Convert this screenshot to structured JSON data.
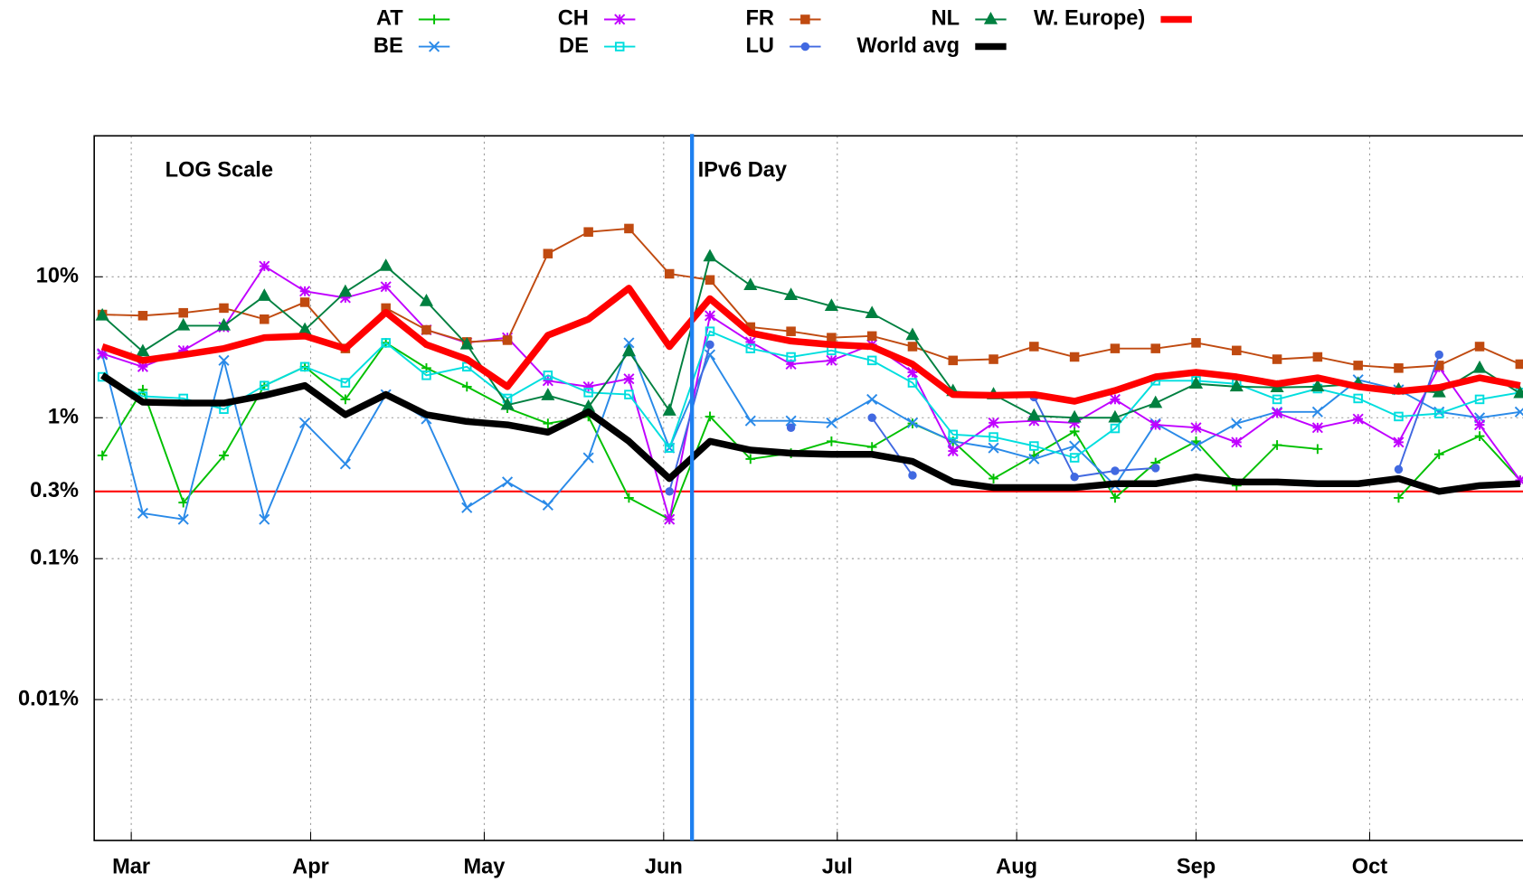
{
  "chart_data": {
    "type": "line",
    "x": [
      55,
      62,
      69,
      76,
      83,
      90,
      97,
      104,
      111,
      118,
      125,
      132,
      139,
      146,
      153,
      160,
      167,
      174,
      181,
      188,
      195,
      202,
      209,
      216,
      223,
      230,
      237,
      244,
      251,
      258,
      265,
      272,
      279,
      286,
      293,
      300
    ],
    "xlim": [
      53.6,
      300.5
    ],
    "xticks": [
      {
        "value": 60,
        "label": "Mar"
      },
      {
        "value": 91,
        "label": "Apr"
      },
      {
        "value": 121,
        "label": "May"
      },
      {
        "value": 152,
        "label": "Jun"
      },
      {
        "value": 182,
        "label": "Jul"
      },
      {
        "value": 213,
        "label": "Aug"
      },
      {
        "value": 244,
        "label": "Sep"
      },
      {
        "value": 274,
        "label": "Oct"
      }
    ],
    "ylim": [
      0.001,
      100
    ],
    "log_y": true,
    "grid": true,
    "yticks": [
      {
        "value": 10,
        "label": "10%"
      },
      {
        "value": 1,
        "label": "1%"
      },
      {
        "value": 0.3,
        "label": "0.3%"
      },
      {
        "value": 0.1,
        "label": "0.1%"
      },
      {
        "value": 0.01,
        "label": "0.01%"
      }
    ],
    "hlines": [
      {
        "y": 0.3,
        "color": "#ff0000"
      }
    ],
    "annotations": [
      {
        "text": "LOG Scale"
      },
      {
        "text": "IPv6 Day",
        "x": 156.9,
        "color": "#1e80f0"
      }
    ],
    "legend": "top",
    "series": [
      {
        "name": "AT",
        "color": "#00c000",
        "marker": "plus",
        "values": [
          0.54,
          1.58,
          0.25,
          0.54,
          1.69,
          2.3,
          1.35,
          3.4,
          2.25,
          1.66,
          1.17,
          0.91,
          1.02,
          0.27,
          0.19,
          1.02,
          0.51,
          0.56,
          0.68,
          0.62,
          0.91,
          0.68,
          0.37,
          0.54,
          0.8,
          0.27,
          0.48,
          0.68,
          0.33,
          0.64,
          0.6,
          null,
          0.27,
          0.55,
          0.74,
          0.36
        ]
      },
      {
        "name": "BE",
        "color": "#2a8ae8",
        "marker": "cross",
        "values": [
          2.8,
          0.21,
          0.19,
          2.55,
          0.19,
          0.92,
          0.47,
          1.46,
          0.98,
          0.23,
          0.35,
          0.24,
          0.52,
          3.4,
          0.61,
          2.8,
          0.95,
          0.95,
          0.92,
          1.35,
          0.92,
          0.68,
          0.61,
          0.51,
          0.63,
          0.33,
          0.91,
          0.63,
          0.91,
          1.1,
          1.1,
          1.86,
          1.58,
          1.1,
          1.0,
          1.1
        ]
      },
      {
        "name": "CH",
        "color": "#c000ff",
        "marker": "star",
        "values": [
          2.85,
          2.3,
          3.0,
          4.4,
          11.9,
          7.9,
          7.1,
          8.5,
          4.2,
          3.4,
          3.7,
          1.83,
          1.66,
          1.89,
          0.19,
          5.3,
          3.45,
          2.4,
          2.55,
          3.3,
          2.1,
          0.58,
          0.92,
          0.95,
          0.92,
          1.35,
          0.89,
          0.85,
          0.67,
          1.08,
          0.85,
          0.98,
          0.67,
          2.28,
          0.89,
          0.36
        ]
      },
      {
        "name": "DE",
        "color": "#00dede",
        "marker": "square-open",
        "values": [
          1.95,
          1.42,
          1.37,
          1.15,
          1.69,
          2.3,
          1.77,
          3.4,
          2.0,
          2.3,
          1.37,
          2.0,
          1.51,
          1.46,
          0.61,
          4.1,
          3.1,
          2.7,
          3.0,
          2.55,
          1.77,
          0.76,
          0.73,
          0.63,
          0.52,
          0.84,
          1.83,
          1.83,
          1.74,
          1.35,
          1.61,
          1.37,
          1.02,
          1.07,
          1.35,
          1.51
        ]
      },
      {
        "name": "FR",
        "color": "#c04a10",
        "marker": "square",
        "values": [
          5.4,
          5.3,
          5.55,
          6.0,
          5.0,
          6.6,
          3.1,
          6.0,
          4.2,
          3.45,
          3.55,
          14.6,
          20.8,
          22,
          10.5,
          9.5,
          4.4,
          4.1,
          3.7,
          3.8,
          3.2,
          2.55,
          2.6,
          3.2,
          2.7,
          3.1,
          3.1,
          3.4,
          3.0,
          2.6,
          2.7,
          2.35,
          2.25,
          2.35,
          3.2,
          2.4
        ]
      },
      {
        "name": "LU",
        "color": "#4169e1",
        "marker": "dot",
        "values": [
          null,
          null,
          null,
          null,
          null,
          null,
          null,
          null,
          null,
          null,
          null,
          null,
          null,
          null,
          0.3,
          3.3,
          null,
          0.85,
          null,
          1.0,
          0.39,
          null,
          null,
          1.4,
          0.38,
          0.42,
          0.44,
          null,
          null,
          null,
          null,
          null,
          0.43,
          2.8,
          null,
          null
        ]
      },
      {
        "name": "NL",
        "color": "#008040",
        "marker": "triangle",
        "values": [
          5.3,
          2.95,
          4.5,
          4.5,
          7.3,
          4.2,
          7.8,
          11.9,
          6.7,
          3.3,
          1.23,
          1.44,
          1.19,
          2.95,
          1.12,
          13.9,
          8.7,
          7.4,
          6.2,
          5.5,
          3.85,
          1.54,
          1.46,
          1.03,
          1.0,
          1.0,
          1.27,
          1.74,
          1.66,
          1.64,
          1.66,
          1.74,
          1.58,
          1.51,
          2.25,
          1.49
        ]
      },
      {
        "name": "World avg",
        "color": "#000000",
        "marker": "none",
        "values": [
          2.0,
          1.29,
          1.27,
          1.27,
          1.44,
          1.69,
          1.05,
          1.46,
          1.05,
          0.94,
          0.89,
          0.79,
          1.1,
          0.68,
          0.37,
          0.68,
          0.59,
          0.56,
          0.55,
          0.55,
          0.49,
          0.35,
          0.32,
          0.32,
          0.32,
          0.34,
          0.34,
          0.38,
          0.35,
          0.35,
          0.34,
          0.34,
          0.37,
          0.3,
          0.33,
          0.34
        ]
      },
      {
        "name": "W. Europe)",
        "color": "#ff0000",
        "marker": "none",
        "values": [
          3.2,
          2.55,
          2.8,
          3.1,
          3.7,
          3.8,
          3.1,
          5.6,
          3.3,
          2.6,
          1.66,
          3.85,
          5.0,
          8.3,
          3.2,
          7.0,
          4.0,
          3.5,
          3.3,
          3.2,
          2.4,
          1.46,
          1.44,
          1.46,
          1.31,
          1.56,
          1.95,
          2.1,
          1.95,
          1.74,
          1.92,
          1.66,
          1.54,
          1.64,
          1.92,
          1.69
        ]
      }
    ]
  }
}
